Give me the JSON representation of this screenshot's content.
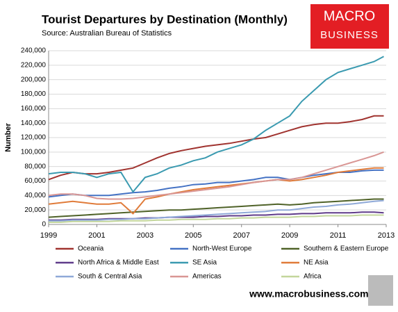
{
  "chart_data": {
    "type": "line",
    "title": "Tourist Departures by Destination (Monthly)",
    "subtitle": "Source: Australian Bureau of Statistics",
    "y_label": "Number",
    "brand": [
      "MACRO",
      "BUSINESS"
    ],
    "website": "www.macrobusiness.com.au",
    "grid": true,
    "xlim": [
      1999,
      2013
    ],
    "xticks": [
      1999,
      2001,
      2003,
      2005,
      2007,
      2009,
      2011,
      2013
    ],
    "ylim": [
      0,
      240000
    ],
    "yticks": [
      0,
      {
        "value": 20000,
        "label": "20,000"
      },
      {
        "value": 40000,
        "label": "40,000"
      },
      {
        "value": 60000,
        "label": "60,000"
      },
      {
        "value": 80000,
        "label": "80,000"
      },
      {
        "value": 100000,
        "label": "100,000"
      },
      {
        "value": 120000,
        "label": "120,000"
      },
      {
        "value": 140000,
        "label": "140,000"
      },
      {
        "value": 160000,
        "label": "160,000"
      },
      {
        "value": 180000,
        "label": "180,000"
      },
      {
        "value": 200000,
        "label": "200,000"
      },
      {
        "value": 220000,
        "label": "220,000"
      },
      {
        "value": 240000,
        "label": "240,000"
      }
    ],
    "x": [
      1999,
      1999.5,
      2000,
      2000.5,
      2001,
      2001.5,
      2002,
      2002.5,
      2003,
      2003.5,
      2004,
      2004.5,
      2005,
      2005.5,
      2006,
      2006.5,
      2007,
      2007.5,
      2008,
      2008.5,
      2009,
      2009.5,
      2010,
      2010.5,
      2011,
      2011.5,
      2012,
      2012.5,
      2012.9
    ],
    "series": [
      {
        "name": "Oceania",
        "color": "#a0332f",
        "values": [
          62000,
          68000,
          72000,
          70000,
          70000,
          72000,
          75000,
          78000,
          85000,
          92000,
          98000,
          102000,
          105000,
          108000,
          110000,
          112000,
          115000,
          118000,
          120000,
          125000,
          130000,
          135000,
          138000,
          140000,
          140000,
          142000,
          145000,
          150000,
          150000
        ]
      },
      {
        "name": "North-West Europe",
        "color": "#4472c4",
        "values": [
          38000,
          40000,
          42000,
          40000,
          40000,
          40000,
          42000,
          44000,
          45000,
          47000,
          50000,
          52000,
          55000,
          56000,
          58000,
          58000,
          60000,
          62000,
          65000,
          65000,
          62000,
          65000,
          68000,
          70000,
          72000,
          72000,
          74000,
          75000,
          75000
        ]
      },
      {
        "name": "Southern & Eastern Europe",
        "color": "#4f6228",
        "values": [
          10000,
          11000,
          12000,
          13000,
          14000,
          15000,
          16000,
          17000,
          18000,
          19000,
          20000,
          20000,
          21000,
          22000,
          23000,
          24000,
          25000,
          26000,
          27000,
          28000,
          27000,
          28000,
          30000,
          31000,
          32000,
          33000,
          34000,
          35000,
          35000
        ]
      },
      {
        "name": "North Africa & Middle East",
        "color": "#5f3b8a",
        "values": [
          6000,
          6000,
          7000,
          7000,
          7000,
          8000,
          8000,
          8000,
          9000,
          9000,
          10000,
          10000,
          10000,
          11000,
          11000,
          12000,
          12000,
          13000,
          13000,
          14000,
          14000,
          15000,
          15000,
          16000,
          16000,
          16000,
          17000,
          17000,
          16000
        ]
      },
      {
        "name": "SE Asia",
        "color": "#3a9ab0",
        "values": [
          70000,
          72000,
          72000,
          70000,
          65000,
          70000,
          72000,
          45000,
          65000,
          70000,
          78000,
          82000,
          88000,
          92000,
          100000,
          105000,
          110000,
          118000,
          130000,
          140000,
          150000,
          170000,
          185000,
          200000,
          210000,
          215000,
          220000,
          225000,
          232000
        ]
      },
      {
        "name": "NE Asia",
        "color": "#e07b39",
        "values": [
          28000,
          30000,
          32000,
          30000,
          28000,
          28000,
          30000,
          15000,
          35000,
          38000,
          42000,
          45000,
          48000,
          50000,
          52000,
          54000,
          56000,
          58000,
          60000,
          62000,
          60000,
          62000,
          65000,
          68000,
          72000,
          74000,
          76000,
          78000,
          78000
        ]
      },
      {
        "name": "South & Central Asia",
        "color": "#8fa9d8",
        "values": [
          5000,
          5000,
          6000,
          6000,
          6000,
          7000,
          7000,
          8000,
          8000,
          9000,
          10000,
          11000,
          12000,
          13000,
          14000,
          15000,
          16000,
          17000,
          18000,
          20000,
          20000,
          22000,
          24000,
          25000,
          27000,
          28000,
          30000,
          32000,
          33000
        ]
      },
      {
        "name": "Americas",
        "color": "#d99694",
        "values": [
          40000,
          42000,
          42000,
          40000,
          36000,
          35000,
          35000,
          36000,
          38000,
          40000,
          42000,
          44000,
          46000,
          48000,
          50000,
          52000,
          55000,
          58000,
          60000,
          62000,
          62000,
          65000,
          70000,
          75000,
          80000,
          85000,
          90000,
          95000,
          100000
        ]
      },
      {
        "name": "Africa",
        "color": "#c3d69b",
        "values": [
          3000,
          3000,
          4000,
          4000,
          4000,
          4000,
          5000,
          5000,
          5000,
          6000,
          6000,
          7000,
          7000,
          7000,
          8000,
          8000,
          9000,
          9000,
          10000,
          10000,
          10000,
          11000,
          11000,
          12000,
          12000,
          12000,
          13000,
          13000,
          13000
        ]
      }
    ]
  }
}
